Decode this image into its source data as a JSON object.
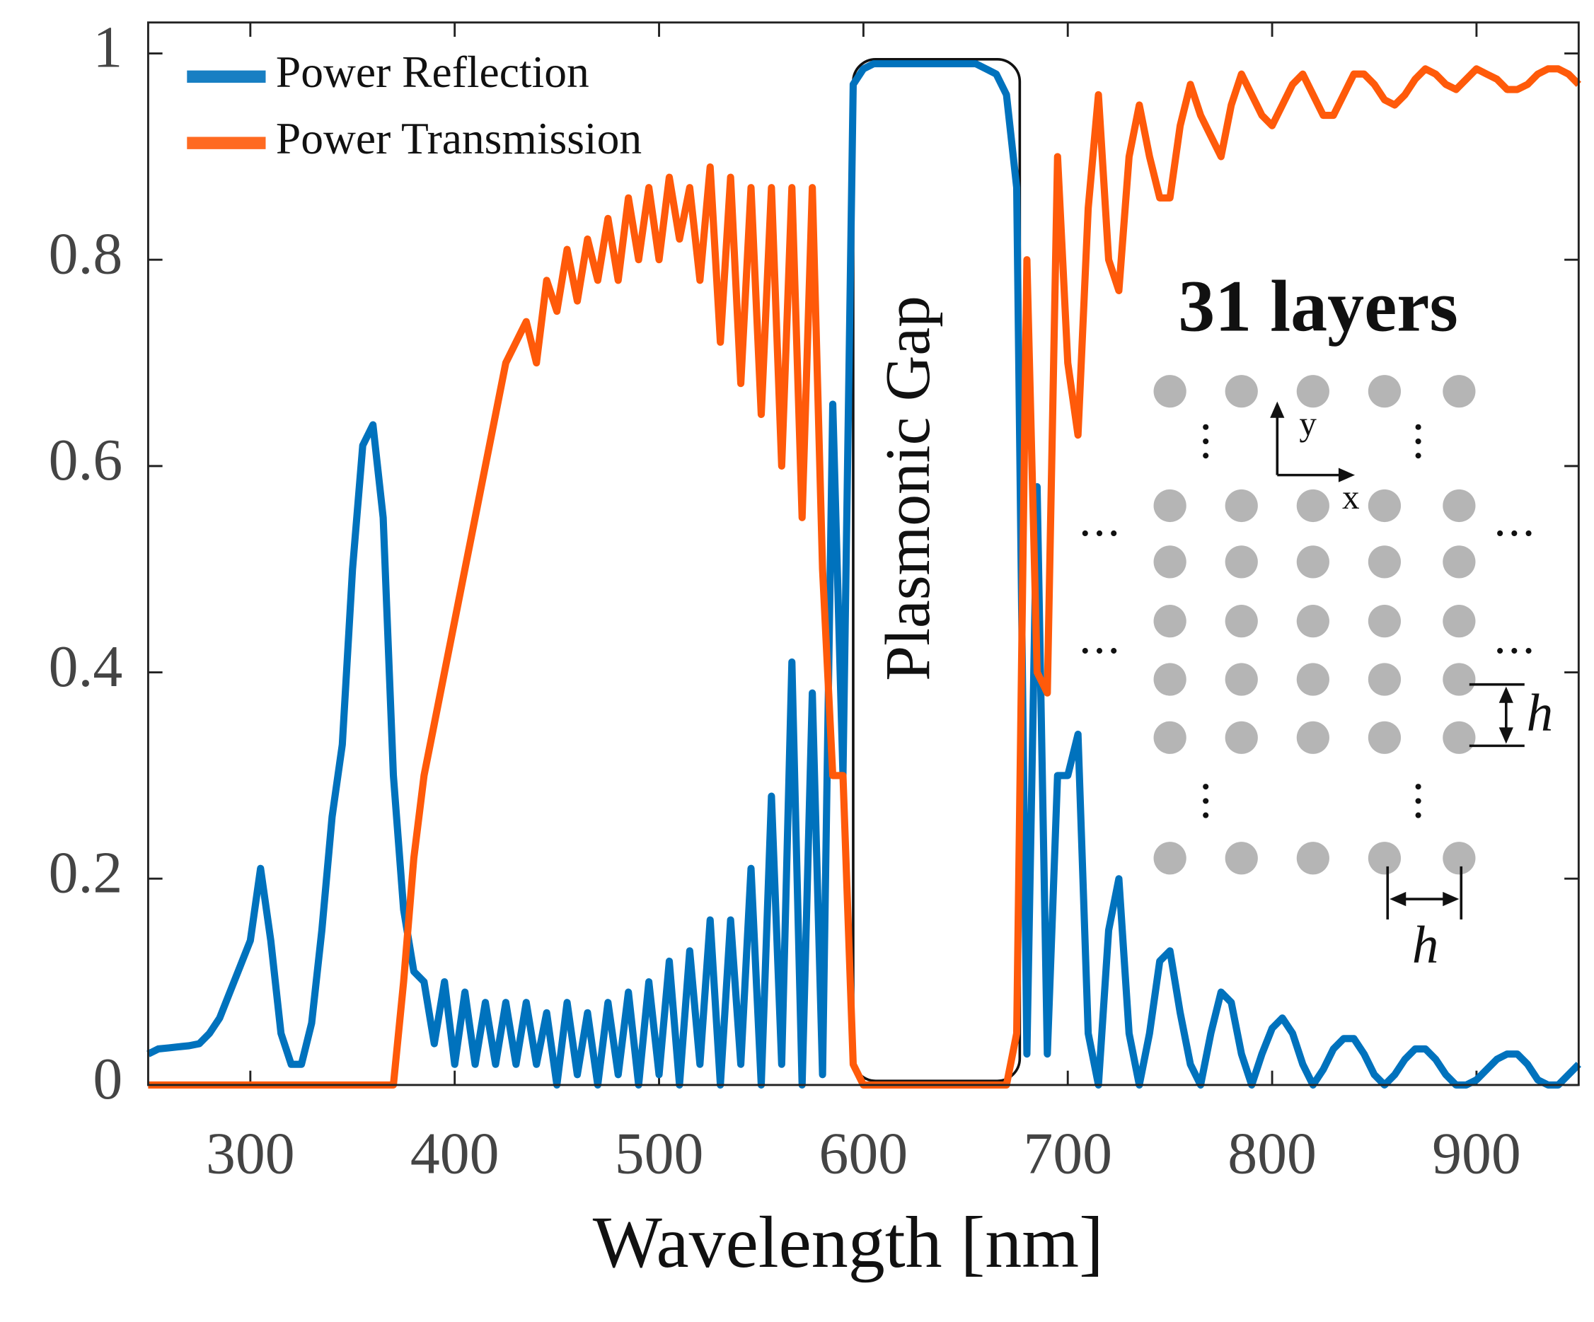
{
  "chart_data": {
    "type": "line",
    "xlabel": "Wavelength [nm]",
    "xlim": [
      250,
      950
    ],
    "xticks": [
      300,
      400,
      500,
      600,
      700,
      800,
      900
    ],
    "ylim": [
      0,
      1.03
    ],
    "yticks": [
      0,
      0.2,
      0.4,
      0.6,
      0.8,
      1
    ],
    "legend": "upper left",
    "x": [
      250,
      255,
      260,
      265,
      270,
      275,
      280,
      285,
      290,
      295,
      300,
      305,
      310,
      315,
      320,
      325,
      330,
      335,
      340,
      345,
      350,
      355,
      360,
      365,
      370,
      375,
      380,
      385,
      390,
      395,
      400,
      405,
      410,
      415,
      420,
      425,
      430,
      435,
      440,
      445,
      450,
      455,
      460,
      465,
      470,
      475,
      480,
      485,
      490,
      495,
      500,
      505,
      510,
      515,
      520,
      525,
      530,
      535,
      540,
      545,
      550,
      555,
      560,
      565,
      570,
      575,
      580,
      585,
      590,
      595,
      600,
      605,
      610,
      615,
      620,
      625,
      630,
      635,
      640,
      645,
      650,
      655,
      660,
      665,
      670,
      675,
      680,
      685,
      690,
      695,
      700,
      705,
      710,
      715,
      720,
      725,
      730,
      735,
      740,
      745,
      750,
      755,
      760,
      765,
      770,
      775,
      780,
      785,
      790,
      795,
      800,
      805,
      810,
      815,
      820,
      825,
      830,
      835,
      840,
      845,
      850,
      855,
      860,
      865,
      870,
      875,
      880,
      885,
      890,
      895,
      900,
      905,
      910,
      915,
      920,
      925,
      930,
      935,
      940,
      945,
      950
    ],
    "series": [
      {
        "name": "Power Reflection",
        "color": "#0072bd",
        "values": [
          0.03,
          0.035,
          0.036,
          0.037,
          0.038,
          0.04,
          0.05,
          0.065,
          0.09,
          0.115,
          0.14,
          0.21,
          0.14,
          0.05,
          0.02,
          0.02,
          0.06,
          0.15,
          0.26,
          0.33,
          0.5,
          0.62,
          0.64,
          0.55,
          0.3,
          0.17,
          0.11,
          0.1,
          0.04,
          0.1,
          0.02,
          0.09,
          0.02,
          0.08,
          0.02,
          0.08,
          0.02,
          0.08,
          0.02,
          0.07,
          0,
          0.08,
          0.01,
          0.07,
          0,
          0.08,
          0.01,
          0.09,
          0,
          0.1,
          0.01,
          0.12,
          0,
          0.13,
          0.02,
          0.16,
          0,
          0.16,
          0.02,
          0.21,
          0,
          0.28,
          0.02,
          0.41,
          0,
          0.38,
          0.01,
          0.66,
          0.3,
          0.97,
          0.985,
          0.99,
          0.99,
          0.99,
          0.99,
          0.99,
          0.99,
          0.99,
          0.99,
          0.99,
          0.99,
          0.99,
          0.985,
          0.98,
          0.96,
          0.87,
          0.03,
          0.58,
          0.03,
          0.3,
          0.3,
          0.34,
          0.05,
          0,
          0.15,
          0.2,
          0.05,
          0,
          0.05,
          0.12,
          0.13,
          0.07,
          0.02,
          0,
          0.05,
          0.09,
          0.08,
          0.03,
          0,
          0.03,
          0.055,
          0.065,
          0.05,
          0.02,
          0,
          0.015,
          0.035,
          0.045,
          0.045,
          0.03,
          0.01,
          0,
          0.01,
          0.025,
          0.035,
          0.035,
          0.025,
          0.01,
          0,
          0,
          0.005,
          0.015,
          0.025,
          0.03,
          0.03,
          0.02,
          0.005,
          0,
          0,
          0.01,
          0.02
        ]
      },
      {
        "name": "Power Transmission",
        "color": "#ff5a0a",
        "values": [
          0,
          0,
          0,
          0,
          0,
          0,
          0,
          0,
          0,
          0,
          0,
          0,
          0,
          0,
          0,
          0,
          0,
          0,
          0,
          0,
          0,
          0,
          0,
          0,
          0,
          0.1,
          0.22,
          0.3,
          0.35,
          0.4,
          0.45,
          0.5,
          0.55,
          0.6,
          0.65,
          0.7,
          0.72,
          0.74,
          0.7,
          0.78,
          0.75,
          0.81,
          0.76,
          0.82,
          0.78,
          0.84,
          0.78,
          0.86,
          0.8,
          0.87,
          0.8,
          0.88,
          0.82,
          0.87,
          0.78,
          0.89,
          0.72,
          0.88,
          0.68,
          0.87,
          0.65,
          0.87,
          0.6,
          0.87,
          0.55,
          0.87,
          0.5,
          0.3,
          0.3,
          0.02,
          0,
          0,
          0,
          0,
          0,
          0,
          0,
          0,
          0,
          0,
          0,
          0,
          0,
          0,
          0,
          0.05,
          0.8,
          0.4,
          0.38,
          0.9,
          0.7,
          0.63,
          0.85,
          0.96,
          0.8,
          0.77,
          0.9,
          0.95,
          0.9,
          0.86,
          0.86,
          0.93,
          0.97,
          0.94,
          0.92,
          0.9,
          0.95,
          0.98,
          0.96,
          0.94,
          0.93,
          0.95,
          0.97,
          0.98,
          0.96,
          0.94,
          0.94,
          0.96,
          0.98,
          0.98,
          0.97,
          0.955,
          0.95,
          0.96,
          0.975,
          0.985,
          0.98,
          0.97,
          0.965,
          0.975,
          0.985,
          0.98,
          0.975,
          0.965,
          0.965,
          0.97,
          0.98,
          0.985,
          0.985,
          0.98,
          0.97
        ]
      }
    ],
    "annotations": {
      "gap": "Plasmonic Gap",
      "layers": "31 layers",
      "y_axis": "y",
      "x_axis": "x",
      "h_vertical": "h",
      "h_horizontal": "h"
    }
  }
}
